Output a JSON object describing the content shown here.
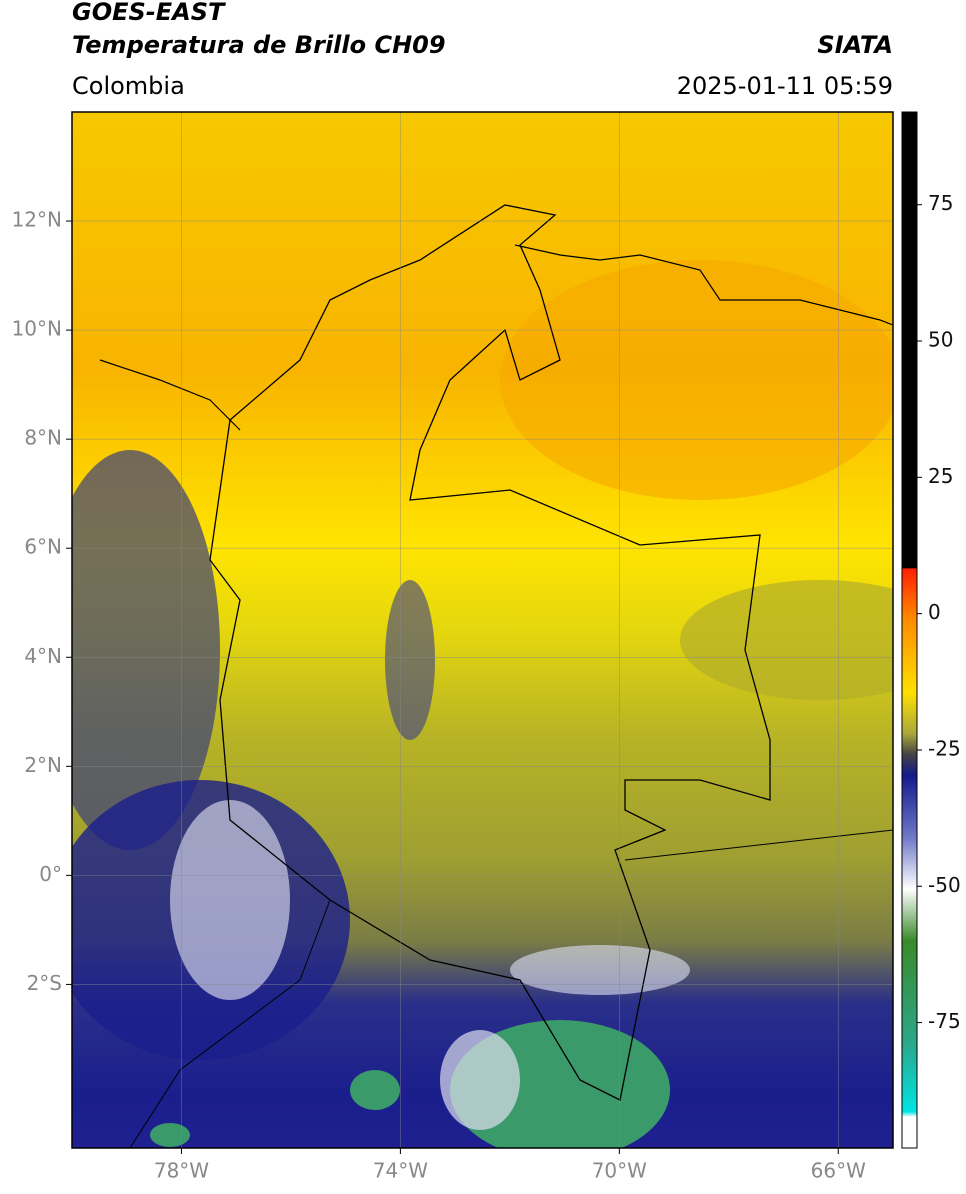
{
  "chart_data": {
    "type": "map",
    "title": "GOES-EAST",
    "subtitle": "Temperatura de Brillo CH09",
    "source": "SIATA",
    "region": "Colombia",
    "timestamp": "2025-01-11 05:59",
    "xlim": [
      -80,
      -65
    ],
    "ylim": [
      -5,
      14
    ],
    "xticks": [
      {
        "value": -78,
        "label": "78°W"
      },
      {
        "value": -74,
        "label": "74°W"
      },
      {
        "value": -70,
        "label": "70°W"
      },
      {
        "value": -66,
        "label": "66°W"
      }
    ],
    "yticks": [
      {
        "value": 12,
        "label": "12°N"
      },
      {
        "value": 10,
        "label": "10°N"
      },
      {
        "value": 8,
        "label": "8°N"
      },
      {
        "value": 6,
        "label": "6°N"
      },
      {
        "value": 4,
        "label": "4°N"
      },
      {
        "value": 2,
        "label": "2°N"
      },
      {
        "value": 0,
        "label": "0°"
      },
      {
        "value": -2,
        "label": "2°S"
      }
    ],
    "grid": true,
    "colorbar": {
      "lim": [
        -98,
        92
      ],
      "ticks": [
        75,
        50,
        25,
        0,
        -25,
        -50,
        -75
      ]
    }
  }
}
